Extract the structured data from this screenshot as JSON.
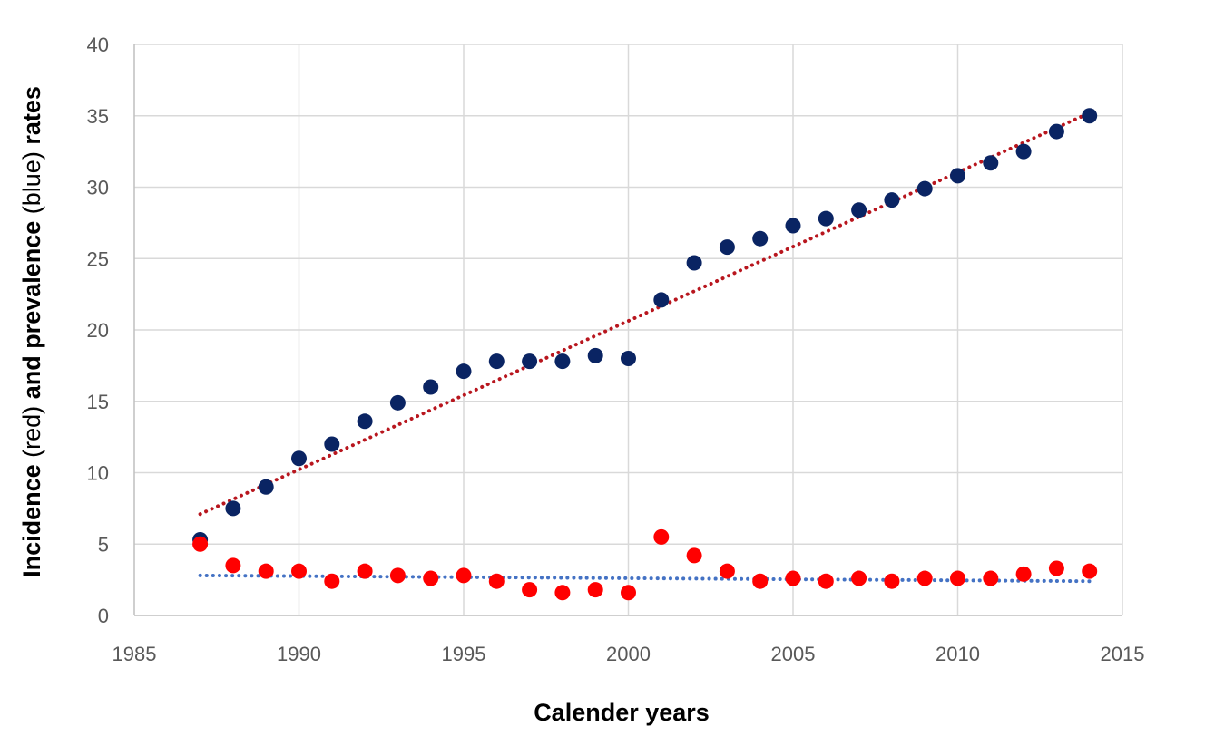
{
  "colors": {
    "incidence_point": "#ff0000",
    "prevalence_point": "#0a2463",
    "prevalence_trend": "#b8161e",
    "incidence_trend": "#4472c4"
  },
  "chart_data": {
    "type": "scatter",
    "title": "",
    "xlabel": "Calender years",
    "ylabel": {
      "p1": "Incidence ",
      "p2": "(red)",
      "p3": " and prevalence ",
      "p4": "(blue)",
      "p5": " rates"
    },
    "xlim": [
      1985,
      2015
    ],
    "ylim": [
      0,
      40
    ],
    "x_ticks": [
      1985,
      1990,
      1995,
      2000,
      2005,
      2010,
      2015
    ],
    "y_ticks": [
      0,
      5,
      10,
      15,
      20,
      25,
      30,
      35,
      40
    ],
    "grid": true,
    "legend": "none",
    "series": [
      {
        "color_role": "prevalence",
        "x": [
          1987,
          1988,
          1989,
          1990,
          1991,
          1992,
          1993,
          1994,
          1995,
          1996,
          1997,
          1998,
          1999,
          2000,
          2001,
          2002,
          2003,
          2004,
          2005,
          2006,
          2007,
          2008,
          2009,
          2010,
          2011,
          2012,
          2013,
          2014
        ],
        "y": [
          5.3,
          7.5,
          9.0,
          11.0,
          12.0,
          13.6,
          14.9,
          16.0,
          17.1,
          17.8,
          17.8,
          17.8,
          18.2,
          18.0,
          22.1,
          24.7,
          25.8,
          26.4,
          27.3,
          27.8,
          28.4,
          29.1,
          29.9,
          30.8,
          31.7,
          32.5,
          33.9,
          35.0
        ]
      },
      {
        "color_role": "incidence",
        "x": [
          1987,
          1988,
          1989,
          1990,
          1991,
          1992,
          1993,
          1994,
          1995,
          1996,
          1997,
          1998,
          1999,
          2000,
          2001,
          2002,
          2003,
          2004,
          2005,
          2006,
          2007,
          2008,
          2009,
          2010,
          2011,
          2012,
          2013,
          2014
        ],
        "y": [
          5.0,
          3.5,
          3.1,
          3.1,
          2.4,
          3.1,
          2.8,
          2.6,
          2.8,
          2.4,
          1.8,
          1.6,
          1.8,
          1.6,
          5.5,
          4.2,
          3.1,
          2.4,
          2.6,
          2.4,
          2.6,
          2.4,
          2.6,
          2.6,
          2.6,
          2.9,
          3.3,
          3.1
        ]
      }
    ],
    "trendlines": [
      {
        "color_role": "prevalence",
        "style": "dotted",
        "x": [
          1987,
          2014
        ],
        "y": [
          7.1,
          35.2
        ]
      },
      {
        "color_role": "incidence",
        "style": "dotted",
        "x": [
          1987,
          2014
        ],
        "y": [
          2.8,
          2.4
        ]
      }
    ]
  }
}
